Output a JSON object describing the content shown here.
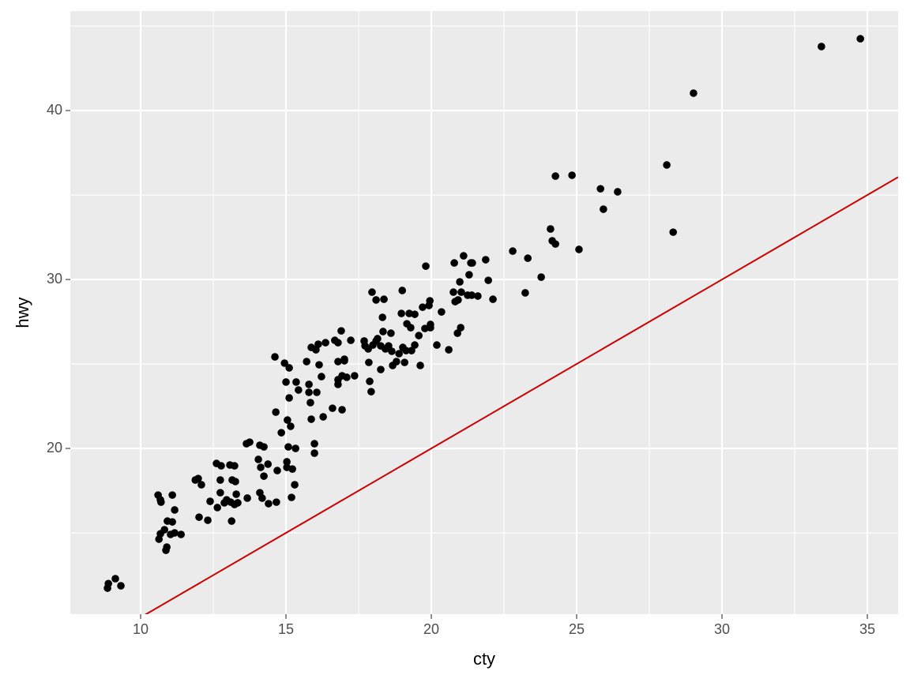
{
  "chart_data": {
    "type": "scatter",
    "x_label": "cty",
    "y_label": "hwy",
    "x": [
      8.86,
      8.89,
      9.13,
      9.32,
      10.6,
      10.68,
      10.7,
      11.09,
      11.17,
      10.63,
      10.68,
      10.82,
      10.92,
      10.9,
      10.87,
      11.09,
      11.17,
      11.39,
      11.03,
      11.88,
      11.98,
      12.09,
      12.01,
      12.31,
      12.39,
      12.61,
      12.77,
      12.74,
      12.74,
      12.64,
      12.88,
      12.96,
      13.07,
      13.23,
      13.15,
      13.26,
      13.1,
      13.13,
      13.29,
      13.34,
      13.23,
      13.64,
      13.75,
      13.67,
      14.05,
      14.1,
      14.24,
      14.13,
      14.24,
      14.1,
      14.18,
      14.38,
      14.4,
      14.67,
      14.7,
      14.62,
      14.65,
      14.84,
      14.95,
      15.0,
      15.05,
      15.11,
      15.11,
      15.03,
      15.03,
      15.16,
      15.08,
      15.22,
      15.19,
      15.33,
      15.3,
      15.35,
      15.43,
      15.71,
      15.79,
      15.79,
      15.87,
      15.84,
      15.87,
      15.98,
      15.98,
      16.03,
      16.11,
      16.06,
      16.14,
      16.22,
      16.28,
      16.36,
      16.6,
      16.68,
      16.79,
      16.79,
      16.79,
      16.79,
      16.9,
      16.93,
      17.01,
      17.01,
      16.93,
      17.09,
      17.23,
      17.36,
      17.69,
      17.72,
      17.83,
      17.85,
      17.88,
      17.93,
      17.96,
      17.99,
      18.1,
      18.1,
      18.15,
      18.26,
      18.26,
      18.32,
      18.34,
      18.37,
      18.42,
      18.53,
      18.61,
      18.64,
      18.67,
      18.8,
      18.89,
      18.97,
      19.0,
      19.02,
      19.08,
      19.13,
      19.16,
      19.29,
      19.24,
      19.32,
      19.43,
      19.43,
      19.57,
      19.62,
      19.7,
      19.78,
      19.81,
      19.92,
      19.95,
      19.97,
      19.97,
      20.19,
      20.35,
      20.6,
      20.76,
      20.79,
      20.82,
      20.9,
      20.92,
      20.98,
      21.01,
      21.03,
      21.11,
      21.25,
      21.3,
      21.36,
      21.41,
      21.39,
      21.6,
      21.87,
      21.96,
      22.12,
      22.8,
      23.32,
      23.23,
      23.78,
      24.1,
      24.16,
      24.27,
      24.27,
      24.84,
      25.08,
      25.82,
      25.92,
      26.41,
      28.1,
      28.32,
      29.02,
      33.42,
      34.76
    ],
    "values": [
      11.73,
      12.0,
      12.29,
      11.87,
      17.24,
      16.96,
      16.82,
      17.24,
      16.36,
      14.63,
      14.95,
      15.19,
      15.7,
      14.16,
      13.97,
      15.65,
      15.0,
      14.91,
      14.91,
      18.13,
      18.22,
      17.85,
      15.93,
      15.75,
      16.87,
      19.11,
      18.97,
      18.13,
      17.38,
      16.5,
      16.78,
      16.96,
      19.02,
      18.97,
      18.13,
      18.04,
      16.82,
      15.7,
      17.29,
      16.78,
      16.68,
      20.28,
      20.37,
      17.06,
      19.35,
      20.19,
      20.09,
      18.88,
      18.36,
      17.38,
      17.06,
      19.07,
      16.73,
      16.82,
      18.69,
      25.42,
      22.15,
      20.93,
      25.05,
      23.93,
      21.68,
      24.77,
      22.99,
      19.21,
      18.88,
      21.31,
      20.09,
      18.78,
      17.1,
      20.0,
      17.85,
      23.93,
      23.46,
      25.14,
      23.79,
      23.32,
      25.98,
      22.71,
      21.73,
      20.28,
      19.72,
      25.84,
      26.17,
      23.32,
      24.95,
      24.25,
      21.87,
      26.26,
      22.38,
      26.4,
      26.26,
      25.14,
      24.07,
      23.79,
      26.96,
      24.3,
      25.19,
      25.28,
      22.29,
      24.21,
      26.4,
      24.3,
      26.36,
      26.07,
      25.89,
      25.09,
      23.97,
      23.36,
      29.25,
      26.12,
      28.79,
      26.36,
      26.5,
      26.07,
      24.67,
      27.76,
      26.92,
      28.83,
      25.89,
      26.07,
      26.82,
      25.75,
      24.91,
      25.14,
      25.61,
      27.99,
      29.35,
      25.98,
      25.09,
      25.79,
      27.38,
      27.15,
      27.99,
      25.79,
      27.94,
      26.12,
      26.68,
      24.91,
      28.36,
      27.1,
      30.79,
      28.46,
      28.74,
      27.34,
      27.15,
      26.12,
      28.08,
      25.84,
      29.25,
      30.98,
      28.69,
      26.82,
      28.79,
      29.86,
      27.15,
      29.25,
      31.4,
      29.07,
      30.28,
      30.98,
      30.98,
      29.07,
      29.02,
      31.17,
      29.95,
      28.83,
      31.68,
      31.26,
      29.21,
      30.14,
      32.99,
      32.29,
      36.12,
      32.1,
      36.17,
      31.78,
      35.37,
      34.16,
      35.19,
      36.78,
      32.8,
      41.03,
      43.79,
      44.25
    ],
    "color": "#000000",
    "reference_line": {
      "intercept": 0,
      "slope": 1,
      "color": "#cc0000"
    },
    "xlim": [
      7.58,
      36.06
    ],
    "ylim": [
      10.19,
      45.89
    ],
    "xticks": [
      10,
      15,
      20,
      25,
      30,
      35
    ],
    "yticks": [
      20,
      30,
      40
    ],
    "grid": true
  }
}
